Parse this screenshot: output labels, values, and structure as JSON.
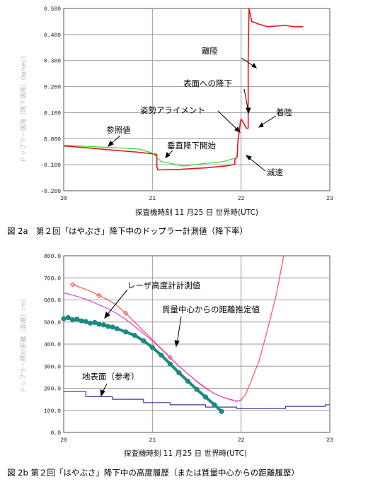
{
  "chart_data": [
    {
      "type": "line",
      "caption": "図 2a　第２回「はやぶさ」降下中のドップラー計測値（降下率）",
      "xlabel": "探査機時刻 11 月25 日 世界時(UTC)",
      "ylabel": "ドップラー速度［降下速度］(m/sec)",
      "xlim": [
        20,
        23
      ],
      "ylim": [
        -0.2,
        0.5
      ],
      "x_ticks": [
        "20",
        "21",
        "22",
        "23"
      ],
      "y_ticks": [
        "-0.200",
        "-0.100",
        "0.000",
        "0.100",
        "0.200",
        "0.300",
        "0.400",
        "0.500"
      ],
      "grid": true,
      "series": [
        {
          "color": "#e8141c",
          "points": [
            [
              20.0,
              -0.028
            ],
            [
              20.3,
              -0.036
            ],
            [
              20.6,
              -0.045
            ],
            [
              20.85,
              -0.052
            ],
            [
              21.05,
              -0.06
            ],
            [
              21.05,
              -0.105
            ],
            [
              21.06,
              -0.12
            ],
            [
              21.3,
              -0.118
            ],
            [
              21.6,
              -0.112
            ],
            [
              21.85,
              -0.104
            ],
            [
              21.93,
              -0.098
            ],
            [
              21.93,
              -0.08
            ],
            [
              21.955,
              -0.07
            ],
            [
              21.96,
              -0.04
            ],
            [
              21.965,
              -0.005
            ],
            [
              21.98,
              0.03
            ],
            [
              21.99,
              0.06
            ],
            [
              22.0,
              0.075
            ],
            [
              22.03,
              0.06
            ],
            [
              22.06,
              0.04
            ],
            [
              22.08,
              0.04
            ],
            [
              22.08,
              0.3
            ],
            [
              22.09,
              0.5
            ],
            [
              22.12,
              0.45
            ],
            [
              22.2,
              0.44
            ],
            [
              22.3,
              0.43
            ],
            [
              22.5,
              0.435
            ],
            [
              22.6,
              0.43
            ],
            [
              22.7,
              0.43
            ]
          ]
        },
        {
          "color": "#22dd22",
          "points": [
            [
              20.0,
              -0.025
            ],
            [
              20.3,
              -0.03
            ],
            [
              20.6,
              -0.035
            ],
            [
              20.85,
              -0.04
            ],
            [
              21.0,
              -0.055
            ],
            [
              21.1,
              -0.088
            ],
            [
              21.35,
              -0.105
            ],
            [
              21.6,
              -0.095
            ],
            [
              21.8,
              -0.088
            ],
            [
              21.93,
              -0.075
            ]
          ]
        }
      ],
      "annotations": [
        "離陸",
        "表面への降下",
        "姿勢アライメント",
        "着陸",
        "参照値",
        "垂直降下開始",
        "減速"
      ]
    },
    {
      "type": "line",
      "caption": "図 2b 第２回「はやぶさ」降下中の高度履歴（または質量中心からの距離履歴）",
      "xlabel": "探査機時刻 11 月25 日 世界時(UTC)",
      "ylabel": "ドップラー積分距離［高度］(m)",
      "xlim": [
        20,
        23
      ],
      "ylim": [
        0,
        800
      ],
      "x_ticks": [
        "20",
        "21",
        "22",
        "23"
      ],
      "y_ticks": [
        "0.0",
        "100.0",
        "200.0",
        "300.0",
        "400.0",
        "500.0",
        "600.0",
        "700.0",
        "800.0"
      ],
      "grid": true,
      "series": [
        {
          "color": "#3a3aa0",
          "points": [
            [
              20.0,
              185
            ],
            [
              20.25,
              185
            ],
            [
              20.25,
              162
            ],
            [
              20.55,
              162
            ],
            [
              20.55,
              150
            ],
            [
              20.9,
              150
            ],
            [
              20.9,
              135
            ],
            [
              21.2,
              135
            ],
            [
              21.2,
              125
            ],
            [
              21.6,
              125
            ],
            [
              21.6,
              115
            ],
            [
              21.95,
              115
            ],
            [
              21.95,
              108
            ],
            [
              22.5,
              108
            ],
            [
              22.5,
              118
            ],
            [
              22.95,
              118
            ],
            [
              22.95,
              125
            ],
            [
              23.0,
              125
            ]
          ]
        },
        {
          "color": "#1a8a80",
          "points": [
            [
              20.0,
              515
            ],
            [
              20.05,
              520
            ],
            [
              20.1,
              510
            ],
            [
              20.15,
              513
            ],
            [
              20.2,
              505
            ],
            [
              20.25,
              502
            ],
            [
              20.3,
              495
            ],
            [
              20.35,
              498
            ],
            [
              20.4,
              490
            ],
            [
              20.45,
              487
            ],
            [
              20.5,
              480
            ],
            [
              20.55,
              477
            ],
            [
              20.6,
              470
            ],
            [
              20.7,
              455
            ],
            [
              20.8,
              440
            ],
            [
              20.9,
              415
            ],
            [
              21.0,
              385
            ],
            [
              21.1,
              350
            ],
            [
              21.2,
              310
            ],
            [
              21.3,
              270
            ],
            [
              21.4,
              232
            ],
            [
              21.5,
              195
            ],
            [
              21.6,
              160
            ],
            [
              21.7,
              125
            ],
            [
              21.78,
              95
            ]
          ]
        },
        {
          "color": "#ff5050",
          "points": [
            [
              20.1,
              670
            ],
            [
              20.2,
              655
            ],
            [
              20.3,
              640
            ],
            [
              20.4,
              620
            ],
            [
              20.5,
              600
            ],
            [
              20.6,
              575
            ],
            [
              20.7,
              540
            ],
            [
              20.8,
              500
            ],
            [
              20.9,
              460
            ],
            [
              21.0,
              420
            ],
            [
              21.1,
              380
            ],
            [
              21.2,
              340
            ],
            [
              21.3,
              300
            ],
            [
              21.4,
              265
            ],
            [
              21.5,
              230
            ],
            [
              21.6,
              200
            ],
            [
              21.7,
              175
            ],
            [
              21.8,
              158
            ],
            [
              21.9,
              148
            ],
            [
              21.95,
              140
            ],
            [
              22.0,
              148
            ],
            [
              22.05,
              170
            ],
            [
              22.1,
              220
            ],
            [
              22.2,
              320
            ],
            [
              22.3,
              470
            ],
            [
              22.4,
              630
            ],
            [
              22.48,
              800
            ]
          ]
        },
        {
          "color": "#e040e0",
          "points": [
            [
              20.0,
              632
            ],
            [
              20.1,
              622
            ],
            [
              20.2,
              610
            ],
            [
              20.3,
              595
            ],
            [
              20.4,
              578
            ],
            [
              20.5,
              560
            ],
            [
              20.6,
              538
            ],
            [
              20.7,
              512
            ],
            [
              20.8,
              480
            ],
            [
              20.9,
              448
            ],
            [
              21.0,
              415
            ],
            [
              21.1,
              378
            ],
            [
              21.2,
              338
            ],
            [
              21.3,
              300
            ],
            [
              21.4,
              265
            ],
            [
              21.5,
              232
            ],
            [
              21.6,
              202
            ],
            [
              21.7,
              175
            ],
            [
              21.8,
              158
            ],
            [
              21.9,
              146
            ],
            [
              21.95,
              142
            ],
            [
              22.0,
              145
            ]
          ]
        }
      ],
      "annotations": [
        "レーザ高度計計測値",
        "質量中心からの距離推定値",
        "地表面（参考）"
      ]
    }
  ]
}
